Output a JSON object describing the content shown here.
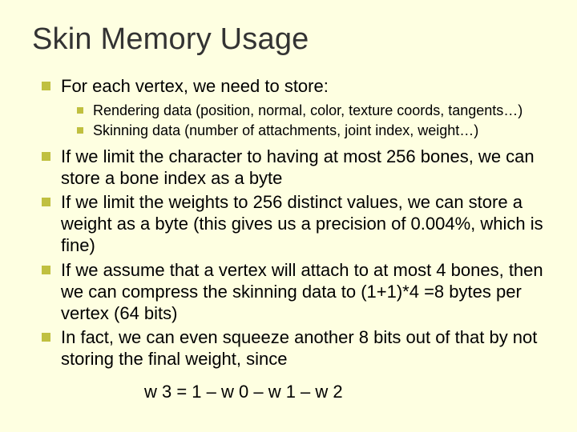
{
  "colors": {
    "slide_bg": "#feffe1",
    "title_color": "#333333",
    "bullet_color": "#c0c040",
    "text_color": "#000000"
  },
  "typography": {
    "title_fontsize": 38,
    "body_fontsize": 22,
    "sub_fontsize": 18,
    "font_family": "Arial"
  },
  "title": "Skin Memory Usage",
  "bullets": {
    "b1": "For each vertex, we need to store:",
    "b1_sub": {
      "s1": "Rendering data (position, normal, color, texture coords, tangents…)",
      "s2": "Skinning data (number of attachments, joint index, weight…)"
    },
    "b2": "If we limit the character to having at most 256 bones, we can store a bone index as a byte",
    "b3": "If we limit the weights to 256 distinct values, we can store a weight as a byte (this gives us a precision of 0.004%, which is fine)",
    "b4": "If we assume that a vertex will attach to at most 4 bones, then we can compress the skinning data to (1+1)*4 =8 bytes per vertex (64 bits)",
    "b5": "In fact, we can even squeeze another 8 bits out of that by not storing the final weight, since"
  },
  "formula": "w 3 = 1 – w 0 – w 1 – w 2"
}
